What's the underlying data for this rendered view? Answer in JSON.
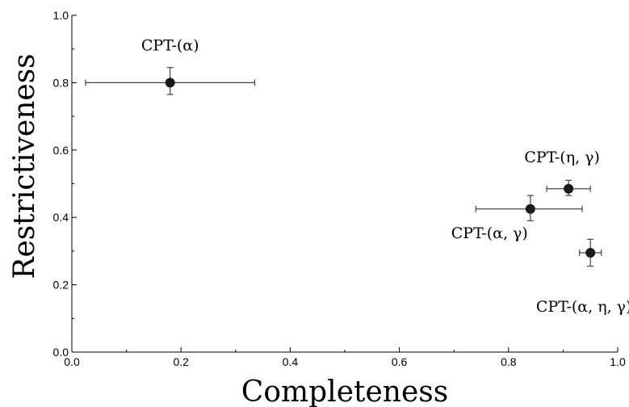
{
  "chart_data": {
    "type": "scatter",
    "xlabel": "Completeness",
    "ylabel": "Restrictiveness",
    "xlim": [
      0,
      1
    ],
    "ylim": [
      0,
      1
    ],
    "xticks": [
      "0.0",
      "0.2",
      "0.4",
      "0.6",
      "0.8",
      "1.0"
    ],
    "yticks": [
      "0.0",
      "0.2",
      "0.4",
      "0.6",
      "0.8",
      "1.0"
    ],
    "grid": false,
    "points": [
      {
        "label": "CPT-(α)",
        "x": 0.18,
        "y": 0.8,
        "xerr": [
          0.025,
          0.335
        ],
        "yerr": [
          0.765,
          0.845
        ],
        "label_pos": "above"
      },
      {
        "label": "CPT-(η, γ)",
        "x": 0.91,
        "y": 0.485,
        "xerr": [
          0.87,
          0.95
        ],
        "yerr": [
          0.465,
          0.51
        ],
        "label_pos": "above"
      },
      {
        "label": "CPT-(α, γ)",
        "x": 0.84,
        "y": 0.425,
        "xerr": [
          0.74,
          0.935
        ],
        "yerr": [
          0.39,
          0.465
        ],
        "label_pos": "below-left"
      },
      {
        "label": "CPT-(α, η, γ)",
        "x": 0.95,
        "y": 0.295,
        "xerr": [
          0.93,
          0.97
        ],
        "yerr": [
          0.255,
          0.335
        ],
        "label_pos": "below"
      }
    ]
  }
}
